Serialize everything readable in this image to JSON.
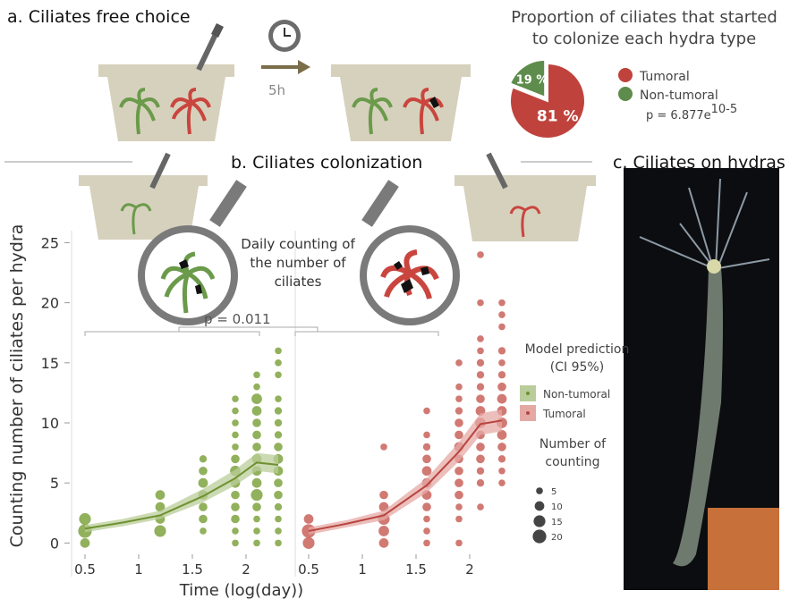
{
  "panel_a": {
    "title": "a.  Ciliates free choice",
    "time_label": "5h"
  },
  "panel_b": {
    "title": "b.  Ciliates colonization",
    "note": "Daily counting of the number of ciliates",
    "p_value": "p = 0.011",
    "legend_title": "Model prediction (CI 95%)",
    "size_title": "Number of counting",
    "sizes": [
      5,
      10,
      15,
      20
    ]
  },
  "panel_c": {
    "title": "c.  Ciliates on hydras"
  },
  "chart_data": [
    {
      "type": "pie",
      "title": "Proportion of ciliates that started to colonize each hydra type",
      "categories": [
        "Tumoral",
        "Non-tumoral"
      ],
      "values": [
        81,
        19
      ],
      "value_labels": [
        "81 %",
        "19 %"
      ],
      "colors": [
        "#bf433c",
        "#5e8c4c"
      ],
      "annotation": "p = 6.877e",
      "annotation_sup": "10-5"
    },
    {
      "type": "scatter",
      "y_label": "Counting number of ciliates per hydra",
      "x_label": "Time (log(day))",
      "xlim": [
        0.375,
        2.375
      ],
      "xticks": [
        0.5,
        1,
        1.5,
        2
      ],
      "ylim": [
        -2.8,
        26
      ],
      "yticks": [
        0,
        5,
        10,
        15,
        20,
        25
      ],
      "series": [
        {
          "name": "Non-tumoral",
          "color": "#86a84a",
          "line_color": "#6f9130",
          "band_color": "#b9cd9a",
          "x": [
            0.5,
            0.5,
            0.5,
            1.2,
            1.2,
            1.2,
            1.2,
            1.6,
            1.6,
            1.6,
            1.6,
            1.6,
            1.6,
            1.6,
            1.9,
            1.9,
            1.9,
            1.9,
            1.9,
            1.9,
            1.9,
            1.9,
            1.9,
            1.9,
            1.9,
            1.9,
            1.9,
            2.1,
            2.1,
            2.1,
            2.1,
            2.1,
            2.1,
            2.1,
            2.1,
            2.1,
            2.1,
            2.1,
            2.1,
            2.1,
            2.1,
            2.1,
            2.3,
            2.3,
            2.3,
            2.3,
            2.3,
            2.3,
            2.3,
            2.3,
            2.3,
            2.3,
            2.3,
            2.3,
            2.3,
            2.3,
            2.3,
            2.3
          ],
          "y": [
            0,
            1,
            2,
            1,
            2,
            3,
            4,
            1,
            2,
            3,
            4,
            5,
            6,
            7,
            0,
            1,
            2,
            3,
            4,
            5,
            6,
            7,
            8,
            9,
            10,
            11,
            12,
            0,
            1,
            2,
            3,
            4,
            5,
            6,
            7,
            8,
            9,
            10,
            11,
            12,
            13,
            14,
            0,
            1,
            2,
            3,
            4,
            5,
            6,
            7,
            8,
            9,
            10,
            11,
            12,
            14,
            15,
            16
          ],
          "size": [
            10,
            20,
            15,
            15,
            10,
            10,
            10,
            5,
            8,
            8,
            10,
            10,
            8,
            6,
            5,
            5,
            8,
            8,
            8,
            10,
            12,
            8,
            5,
            5,
            5,
            5,
            5,
            5,
            5,
            5,
            8,
            15,
            10,
            10,
            10,
            8,
            8,
            8,
            10,
            12,
            5,
            5,
            5,
            5,
            5,
            6,
            8,
            8,
            10,
            10,
            8,
            6,
            6,
            6,
            5,
            5,
            5,
            5
          ]
        }
      ],
      "fit": {
        "x": [
          0.5,
          0.85,
          1.2,
          1.6,
          1.9,
          2.1,
          2.3
        ],
        "y": [
          1.2,
          1.7,
          2.3,
          3.9,
          5.4,
          6.7,
          6.5
        ],
        "lower": [
          0.9,
          1.4,
          2.0,
          3.4,
          4.8,
          6.0,
          5.8
        ],
        "upper": [
          1.5,
          2.0,
          2.7,
          4.5,
          6.1,
          7.5,
          7.3
        ]
      }
    },
    {
      "type": "scatter",
      "xlim": [
        0.375,
        2.375
      ],
      "xticks": [
        0.5,
        1,
        1.5,
        2
      ],
      "ylim": [
        -2.8,
        26
      ],
      "series": [
        {
          "name": "Tumoral",
          "color": "#cc6a64",
          "line_color": "#b8453f",
          "band_color": "#e5a9a5",
          "x": [
            0.5,
            0.5,
            0.5,
            1.2,
            1.2,
            1.2,
            1.2,
            1.2,
            1.2,
            1.6,
            1.6,
            1.6,
            1.6,
            1.6,
            1.6,
            1.6,
            1.6,
            1.6,
            1.6,
            1.6,
            1.9,
            1.9,
            1.9,
            1.9,
            1.9,
            1.9,
            1.9,
            1.9,
            1.9,
            1.9,
            1.9,
            1.9,
            1.9,
            1.9,
            2.1,
            2.1,
            2.1,
            2.1,
            2.1,
            2.1,
            2.1,
            2.1,
            2.1,
            2.1,
            2.1,
            2.1,
            2.1,
            2.1,
            2.1,
            2.1,
            2.3,
            2.3,
            2.3,
            2.3,
            2.3,
            2.3,
            2.3,
            2.3,
            2.3,
            2.3,
            2.3,
            2.3,
            2.3,
            2.3,
            2.3
          ],
          "y": [
            0,
            1,
            2,
            0,
            1,
            2,
            3,
            4,
            8,
            0,
            1,
            2,
            3,
            4,
            5,
            6,
            7,
            8,
            9,
            11,
            0,
            2,
            3,
            4,
            5,
            6,
            7,
            8,
            9,
            10,
            11,
            12,
            13,
            15,
            3,
            5,
            6,
            7,
            8,
            9,
            10,
            11,
            12,
            13,
            14,
            15,
            16,
            17,
            20,
            24,
            5,
            6,
            7,
            8,
            9,
            10,
            11,
            12,
            13,
            14,
            15,
            16,
            18,
            19,
            20
          ],
          "size": [
            15,
            20,
            10,
            10,
            12,
            15,
            10,
            8,
            5,
            5,
            5,
            5,
            8,
            10,
            10,
            10,
            8,
            6,
            5,
            5,
            5,
            5,
            5,
            8,
            8,
            8,
            8,
            10,
            8,
            8,
            6,
            5,
            5,
            5,
            5,
            6,
            6,
            8,
            8,
            8,
            12,
            10,
            8,
            6,
            6,
            6,
            5,
            5,
            5,
            5,
            5,
            5,
            6,
            8,
            10,
            12,
            10,
            10,
            8,
            6,
            5,
            6,
            5,
            5,
            5
          ]
        }
      ],
      "fit": {
        "x": [
          0.5,
          0.85,
          1.2,
          1.6,
          1.9,
          2.1,
          2.3
        ],
        "y": [
          1.0,
          1.6,
          2.3,
          4.8,
          7.6,
          9.9,
          10.2
        ],
        "lower": [
          0.7,
          1.3,
          1.9,
          4.2,
          6.8,
          9.0,
          9.3
        ],
        "upper": [
          1.3,
          1.9,
          2.7,
          5.4,
          8.4,
          10.8,
          11.1
        ]
      }
    }
  ]
}
